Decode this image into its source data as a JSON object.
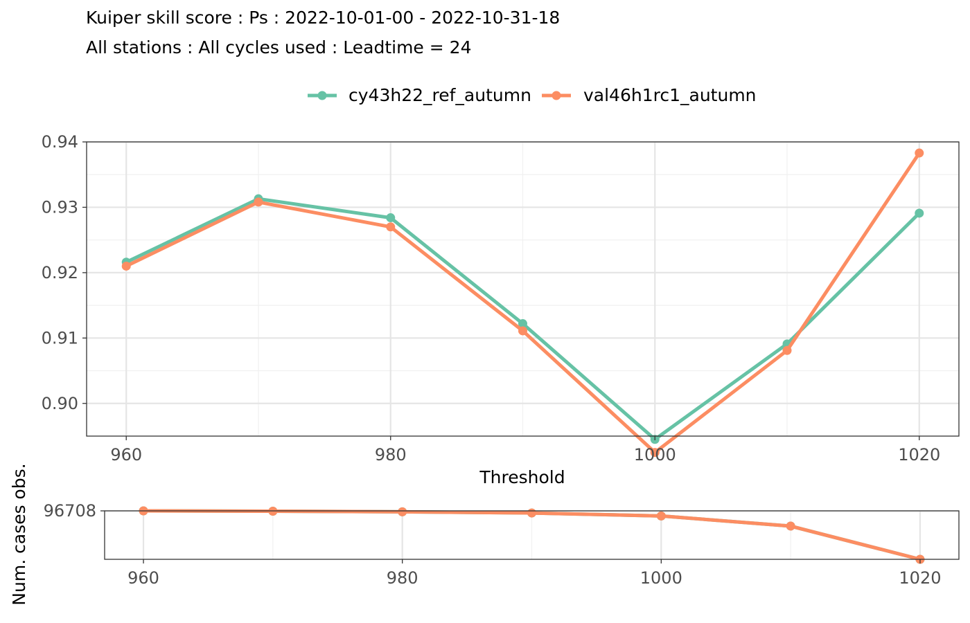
{
  "chart_data": [
    {
      "type": "line",
      "title": "Kuiper skill score : Ps : 2022-10-01-00 - 2022-10-31-18",
      "subtitle": "All stations : All cycles used : Leadtime = 24",
      "xlabel": "Threshold",
      "ylabel": "",
      "x": [
        960,
        970,
        980,
        990,
        1000,
        1010,
        1020
      ],
      "xticks": [
        "960",
        "980",
        "1000",
        "1020"
      ],
      "yticks": [
        "0.90",
        "0.91",
        "0.92",
        "0.93",
        "0.94"
      ],
      "xlim": [
        957,
        1023
      ],
      "ylim": [
        0.895,
        0.94
      ],
      "grid": true,
      "legend": "top",
      "series": [
        {
          "name": "cy43h22_ref_autumn",
          "color": "#66c2a5",
          "values": [
            0.9216,
            0.9313,
            0.9284,
            0.9122,
            0.8945,
            0.9091,
            0.9291
          ]
        },
        {
          "name": "val46h1rc1_autumn",
          "color": "#fc8d62",
          "values": [
            0.921,
            0.9308,
            0.927,
            0.9111,
            0.8925,
            0.9081,
            0.9383
          ]
        }
      ]
    },
    {
      "type": "line",
      "ylabel": "Num. cases obs.",
      "x": [
        960,
        970,
        980,
        990,
        1000,
        1010,
        1020
      ],
      "xticks": [
        "960",
        "980",
        "1000",
        "1020"
      ],
      "yticks": [
        "96708"
      ],
      "xlim": [
        957,
        1023
      ],
      "ylim": [
        96300,
        96708
      ],
      "grid": true,
      "series": [
        {
          "name": "cy43h22_ref_autumn",
          "color": "#66c2a5",
          "values": [
            96708,
            96705,
            96700,
            96690,
            96665,
            96580,
            96300
          ]
        },
        {
          "name": "val46h1rc1_autumn",
          "color": "#fc8d62",
          "values": [
            96708,
            96705,
            96700,
            96690,
            96665,
            96580,
            96300
          ]
        }
      ]
    }
  ]
}
